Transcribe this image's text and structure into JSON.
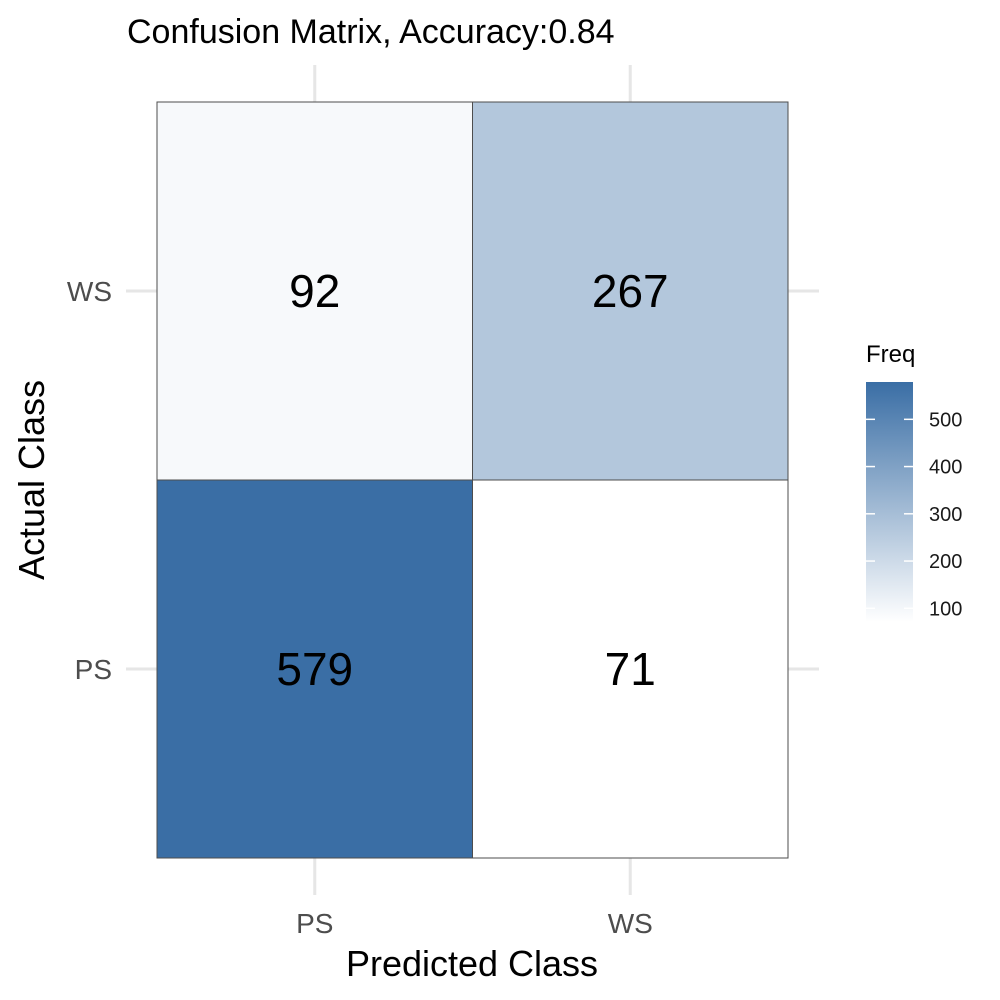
{
  "chart_data": {
    "type": "heatmap",
    "title": "Confusion Matrix, Accuracy:0.84",
    "xlabel": "Predicted Class",
    "ylabel": "Actual Class",
    "x_categories": [
      "PS",
      "WS"
    ],
    "y_categories": [
      "PS",
      "WS"
    ],
    "cells": [
      {
        "actual": "WS",
        "predicted": "PS",
        "value": 92
      },
      {
        "actual": "WS",
        "predicted": "WS",
        "value": 267
      },
      {
        "actual": "PS",
        "predicted": "PS",
        "value": 579
      },
      {
        "actual": "PS",
        "predicted": "WS",
        "value": 71
      }
    ],
    "legend": {
      "title": "Freq",
      "ticks": [
        100,
        200,
        300,
        400,
        500
      ],
      "min": 71,
      "max": 579,
      "low_color": "#ffffff",
      "high_color": "#3a6ea5"
    },
    "grid": true
  }
}
